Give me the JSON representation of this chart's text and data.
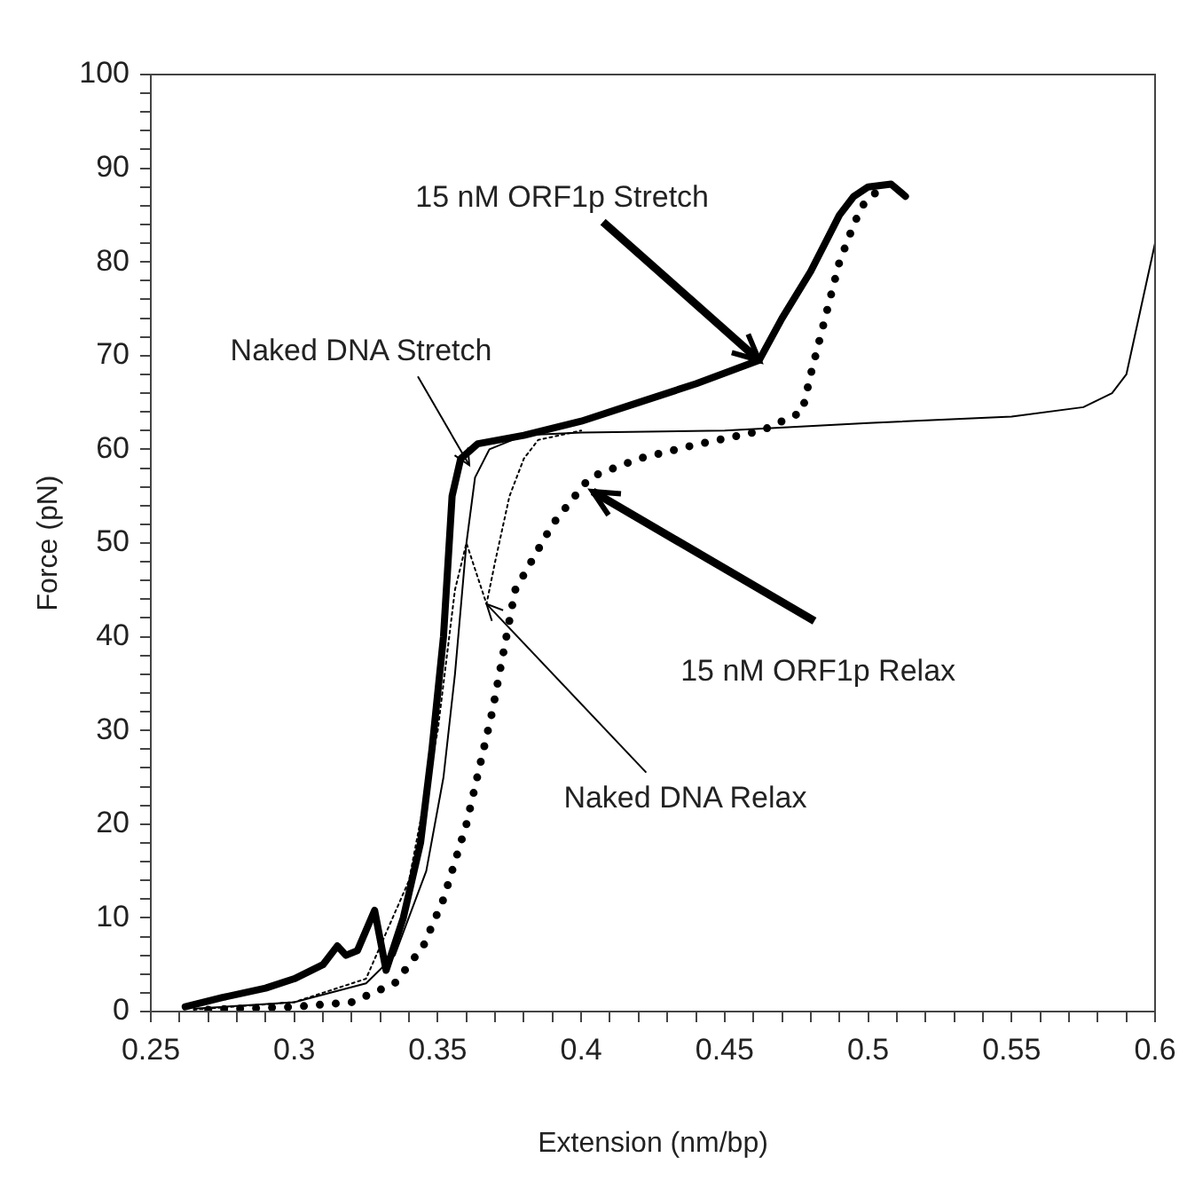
{
  "chart_data": {
    "type": "line",
    "xlabel": "Extension (nm/bp)",
    "ylabel": "Force (pN)",
    "xlim": [
      0.25,
      0.6
    ],
    "ylim": [
      0,
      100
    ],
    "xticks": [
      0.25,
      {
        "value": 0.26,
        "label": null
      },
      {
        "value": 0.27,
        "label": null
      },
      {
        "value": 0.28,
        "label": null
      },
      {
        "value": 0.29,
        "label": null
      },
      0.3,
      {
        "value": 0.31,
        "label": null
      },
      {
        "value": 0.32,
        "label": null
      },
      {
        "value": 0.33,
        "label": null
      },
      {
        "value": 0.34,
        "label": null
      },
      0.35,
      {
        "value": 0.36,
        "label": null
      },
      {
        "value": 0.37,
        "label": null
      },
      {
        "value": 0.38,
        "label": null
      },
      {
        "value": 0.39,
        "label": null
      },
      0.4,
      {
        "value": 0.41,
        "label": null
      },
      {
        "value": 0.42,
        "label": null
      },
      {
        "value": 0.43,
        "label": null
      },
      {
        "value": 0.44,
        "label": null
      },
      0.45,
      {
        "value": 0.46,
        "label": null
      },
      {
        "value": 0.47,
        "label": null
      },
      {
        "value": 0.48,
        "label": null
      },
      {
        "value": 0.49,
        "label": null
      },
      0.5,
      {
        "value": 0.51,
        "label": null
      },
      {
        "value": 0.52,
        "label": null
      },
      {
        "value": 0.53,
        "label": null
      },
      {
        "value": 0.54,
        "label": null
      },
      0.55,
      {
        "value": 0.56,
        "label": null
      },
      {
        "value": 0.57,
        "label": null
      },
      {
        "value": 0.58,
        "label": null
      },
      {
        "value": 0.59,
        "label": null
      },
      0.6
    ],
    "yticks": [
      0,
      {
        "value": 2,
        "label": null
      },
      {
        "value": 4,
        "label": null
      },
      {
        "value": 6,
        "label": null
      },
      {
        "value": 8,
        "label": null
      },
      10,
      {
        "value": 12,
        "label": null
      },
      {
        "value": 14,
        "label": null
      },
      {
        "value": 16,
        "label": null
      },
      {
        "value": 18,
        "label": null
      },
      20,
      {
        "value": 22,
        "label": null
      },
      {
        "value": 24,
        "label": null
      },
      {
        "value": 26,
        "label": null
      },
      {
        "value": 28,
        "label": null
      },
      30,
      {
        "value": 32,
        "label": null
      },
      {
        "value": 34,
        "label": null
      },
      {
        "value": 36,
        "label": null
      },
      {
        "value": 38,
        "label": null
      },
      40,
      {
        "value": 42,
        "label": null
      },
      {
        "value": 44,
        "label": null
      },
      {
        "value": 46,
        "label": null
      },
      {
        "value": 48,
        "label": null
      },
      50,
      {
        "value": 52,
        "label": null
      },
      {
        "value": 54,
        "label": null
      },
      {
        "value": 56,
        "label": null
      },
      {
        "value": 58,
        "label": null
      },
      60,
      {
        "value": 62,
        "label": null
      },
      {
        "value": 64,
        "label": null
      },
      {
        "value": 66,
        "label": null
      },
      {
        "value": 68,
        "label": null
      },
      70,
      {
        "value": 72,
        "label": null
      },
      {
        "value": 74,
        "label": null
      },
      {
        "value": 76,
        "label": null
      },
      {
        "value": 78,
        "label": null
      },
      80,
      {
        "value": 82,
        "label": null
      },
      {
        "value": 84,
        "label": null
      },
      {
        "value": 86,
        "label": null
      },
      {
        "value": 88,
        "label": null
      },
      90,
      {
        "value": 92,
        "label": null
      },
      {
        "value": 94,
        "label": null
      },
      {
        "value": 96,
        "label": null
      },
      {
        "value": 98,
        "label": null
      },
      100
    ],
    "grid": false,
    "legend": false,
    "marker": "none",
    "series": [
      {
        "color": "#000000",
        "line_style": "solid",
        "x": [
          0.262,
          0.275,
          0.29,
          0.3,
          0.31,
          0.315,
          0.318,
          0.322,
          0.328,
          0.332,
          0.338,
          0.344,
          0.348,
          0.352,
          0.355,
          0.358,
          0.364,
          0.38,
          0.4,
          0.42,
          0.44,
          0.462,
          0.47,
          0.48,
          0.49,
          0.495,
          0.5,
          0.508,
          0.513
        ],
        "values": [
          0.5,
          1.5,
          2.5,
          3.5,
          5,
          7,
          6,
          6.5,
          10.8,
          4.4,
          10,
          18,
          28,
          40,
          55,
          59,
          60.6,
          61.5,
          63,
          65,
          67,
          69.5,
          74,
          79,
          85,
          87,
          88,
          88.3,
          87
        ]
      },
      {
        "color": "#000000",
        "line_style": "solid",
        "x": [
          0.265,
          0.3,
          0.325,
          0.335,
          0.346,
          0.352,
          0.356,
          0.36,
          0.363,
          0.368,
          0.38,
          0.4,
          0.45,
          0.5,
          0.55,
          0.575,
          0.585,
          0.59,
          0.595,
          0.6
        ],
        "values": [
          0.3,
          1,
          3,
          6,
          15,
          25,
          36,
          50,
          57,
          60,
          61.5,
          61.8,
          62,
          62.8,
          63.5,
          64.5,
          66,
          68,
          75,
          82
        ]
      },
      {
        "color": "#000000",
        "line_style": "dotted",
        "x": [
          0.265,
          0.3,
          0.325,
          0.34,
          0.35,
          0.356,
          0.36,
          0.367,
          0.37,
          0.375,
          0.38,
          0.385,
          0.4
        ],
        "values": [
          0.2,
          1,
          3.5,
          14,
          30,
          45,
          50,
          43.5,
          48,
          55,
          59,
          61,
          62
        ]
      },
      {
        "color": "#000000",
        "line_style": "dotted",
        "x": [
          0.27,
          0.3,
          0.32,
          0.335,
          0.345,
          0.352,
          0.36,
          0.369,
          0.377,
          0.39,
          0.403,
          0.42,
          0.44,
          0.463,
          0.477,
          0.48,
          0.485,
          0.49,
          0.495,
          0.498,
          0.503
        ],
        "values": [
          0.2,
          0.5,
          1,
          3,
          7,
          12,
          20,
          32,
          45,
          52,
          57,
          59,
          60.5,
          62,
          64,
          68,
          74,
          80,
          84,
          86,
          87.5
        ]
      }
    ],
    "annotations": [
      {
        "text": "15 nM ORF1p Stretch",
        "x": 0.462,
        "y": 69.5
      },
      {
        "text": "Naked DNA Stretch",
        "x": 0.361,
        "y": 58.3
      },
      {
        "text": "15 nM ORF1p Relax",
        "x": 0.404,
        "y": 55.5
      },
      {
        "text": "Naked DNA Relax",
        "x": 0.367,
        "y": 43.5
      }
    ]
  }
}
